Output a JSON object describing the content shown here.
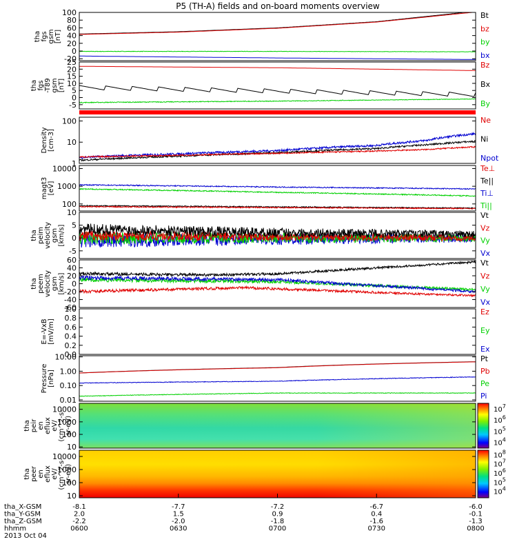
{
  "title": "P5 (TH-A) fields and on-board moments overview",
  "colors": {
    "black": "#000000",
    "red": "#e00000",
    "green": "#00d000",
    "blue": "#0000d0"
  },
  "chart_data": [
    {
      "type": "line",
      "id": "fgs",
      "ylabel": [
        "tha",
        "fgs",
        "gsm",
        "[nT]"
      ],
      "yticks": [
        "100",
        "80",
        "60",
        "40",
        "20",
        "0",
        "-20"
      ],
      "ylim": [
        -25,
        100
      ],
      "legend": [
        {
          "name": "Bt",
          "color": "black"
        },
        {
          "name": "bz",
          "color": "red"
        },
        {
          "name": "by",
          "color": "green"
        },
        {
          "name": "bx",
          "color": "blue"
        }
      ],
      "series": [
        {
          "name": "Bt",
          "color": "black",
          "x": [
            0,
            30,
            60,
            90,
            120
          ],
          "y": [
            44,
            50,
            60,
            76,
            103
          ]
        },
        {
          "name": "bz",
          "color": "red",
          "x": [
            0,
            30,
            60,
            90,
            120
          ],
          "y": [
            43,
            49,
            59,
            75,
            101
          ]
        },
        {
          "name": "by",
          "color": "green",
          "x": [
            0,
            60,
            120
          ],
          "y": [
            -1,
            -1,
            -2
          ],
          "noise": 0.6
        },
        {
          "name": "bx",
          "color": "blue",
          "x": [
            0,
            60,
            120
          ],
          "y": [
            -13,
            -18,
            -22
          ]
        }
      ]
    },
    {
      "type": "line",
      "id": "fgs_t89",
      "ylabel": [
        "tha",
        "fgs",
        "-T89",
        "gsm",
        "[nT]"
      ],
      "yticks": [
        "25",
        "20",
        "15",
        "10",
        "5",
        "0",
        "-5"
      ],
      "ylim": [
        -8,
        25
      ],
      "legend": [
        {
          "name": "Bz",
          "color": "red"
        },
        {
          "name": "Bx",
          "color": "black"
        },
        {
          "name": "By",
          "color": "green"
        }
      ],
      "series": [
        {
          "name": "Bz",
          "color": "red",
          "x": [
            0,
            60,
            120
          ],
          "y": [
            22,
            21,
            19
          ]
        },
        {
          "name": "Bx",
          "color": "black",
          "x": [
            0,
            120
          ],
          "y": [
            7,
            2
          ],
          "sawtooth": true
        },
        {
          "name": "By",
          "color": "green",
          "x": [
            0,
            60,
            120
          ],
          "y": [
            -3.5,
            -2.5,
            -1
          ],
          "noise": 0.3
        }
      ]
    },
    {
      "type": "line",
      "id": "density",
      "ylabel": [
        "Density",
        "[cm-3]"
      ],
      "yticks": [
        "100",
        "10",
        "1"
      ],
      "ylim": [
        1,
        150
      ],
      "log": true,
      "legend": [
        {
          "name": "Ne",
          "color": "red"
        },
        {
          "name": "Ni",
          "color": "black"
        },
        {
          "name": "Npot",
          "color": "blue"
        }
      ],
      "series": [
        {
          "name": "Npot",
          "color": "blue",
          "x": [
            0,
            30,
            60,
            90,
            105,
            120
          ],
          "y": [
            1.9,
            2.8,
            4.0,
            7.0,
            12.0,
            25.0
          ],
          "noise": 0.05
        },
        {
          "name": "Ni",
          "color": "black",
          "x": [
            0,
            30,
            60,
            90,
            105,
            120
          ],
          "y": [
            1.4,
            2.2,
            3.2,
            5.0,
            7.5,
            11.0
          ],
          "noise": 0.04
        },
        {
          "name": "Ne",
          "color": "red",
          "x": [
            0,
            30,
            60,
            90,
            105,
            120
          ],
          "y": [
            2.0,
            2.4,
            3.0,
            3.8,
            4.5,
            6.0
          ],
          "noise": 0.03
        }
      ]
    },
    {
      "type": "line",
      "id": "temperature",
      "ylabel": [
        "magt3",
        "[eV]"
      ],
      "yticks": [
        "10000",
        "1000",
        "100"
      ],
      "ylim": [
        40,
        15000
      ],
      "log": true,
      "legend": [
        {
          "name": "Te⊥",
          "color": "red"
        },
        {
          "name": "Te||",
          "color": "black"
        },
        {
          "name": "Ti⊥",
          "color": "blue"
        },
        {
          "name": "Ti||",
          "color": "green"
        }
      ],
      "series": [
        {
          "name": "Ti⊥",
          "color": "blue",
          "x": [
            0,
            60,
            120
          ],
          "y": [
            1200,
            900,
            700
          ],
          "noise": 0.03
        },
        {
          "name": "Ti||",
          "color": "green",
          "x": [
            0,
            60,
            120
          ],
          "y": [
            700,
            450,
            280
          ],
          "noise": 0.03
        },
        {
          "name": "Te||",
          "color": "black",
          "x": [
            0,
            60,
            120
          ],
          "y": [
            80,
            68,
            58
          ],
          "noise": 0.03
        },
        {
          "name": "Te⊥",
          "color": "red",
          "x": [
            0,
            60,
            120
          ],
          "y": [
            70,
            62,
            55
          ],
          "noise": 0.03
        }
      ]
    },
    {
      "type": "line",
      "id": "peim_velocity",
      "ylabel": [
        "tha",
        "peim",
        "velocity",
        "gsm",
        "[km/s]"
      ],
      "yticks": [
        "10",
        "5",
        "0",
        "-5"
      ],
      "ylim": [
        -8,
        10
      ],
      "legend": [
        {
          "name": "Vt",
          "color": "black"
        },
        {
          "name": "Vz",
          "color": "red"
        },
        {
          "name": "Vy",
          "color": "green"
        },
        {
          "name": "Vx",
          "color": "blue"
        }
      ],
      "series": [
        {
          "name": "Vx",
          "color": "blue",
          "x": [
            0,
            60,
            120
          ],
          "y": [
            -1,
            -0.5,
            0
          ],
          "noise": 2.8
        },
        {
          "name": "Vy",
          "color": "green",
          "x": [
            0,
            60,
            120
          ],
          "y": [
            0,
            0,
            0
          ],
          "noise": 2.5
        },
        {
          "name": "Vz",
          "color": "red",
          "x": [
            0,
            60,
            120
          ],
          "y": [
            1,
            0.5,
            0
          ],
          "noise": 2.0
        },
        {
          "name": "Vt",
          "color": "black",
          "x": [
            0,
            60,
            120
          ],
          "y": [
            3.5,
            2.2,
            1.5
          ],
          "noise": 2.2
        }
      ]
    },
    {
      "type": "line",
      "id": "peem_velocity",
      "ylabel": [
        "tha",
        "peem",
        "velocity",
        "gsm",
        "[km/s]"
      ],
      "yticks": [
        "60",
        "40",
        "20",
        "0",
        "-20",
        "-40",
        "-60"
      ],
      "ylim": [
        -60,
        60
      ],
      "legend": [
        {
          "name": "Vt",
          "color": "black"
        },
        {
          "name": "Vz",
          "color": "red"
        },
        {
          "name": "Vy",
          "color": "green"
        },
        {
          "name": "Vx",
          "color": "blue"
        }
      ],
      "series": [
        {
          "name": "Vt",
          "color": "black",
          "x": [
            0,
            40,
            60,
            80,
            100,
            120
          ],
          "y": [
            25,
            22,
            25,
            35,
            45,
            55
          ],
          "noise": 4
        },
        {
          "name": "Vy",
          "color": "green",
          "x": [
            0,
            60,
            120
          ],
          "y": [
            10,
            5,
            -15
          ],
          "noise": 5
        },
        {
          "name": "Vx",
          "color": "blue",
          "x": [
            0,
            60,
            120
          ],
          "y": [
            15,
            10,
            -20
          ],
          "noise": 5
        },
        {
          "name": "Vz",
          "color": "red",
          "x": [
            0,
            50,
            100,
            120
          ],
          "y": [
            -20,
            -10,
            -25,
            -30
          ],
          "noise": 4
        }
      ]
    },
    {
      "type": "line",
      "id": "efield",
      "ylabel": [
        "E=-VxB",
        "[mV/m]"
      ],
      "yticks": [
        "1.0",
        "0.8",
        "0.6",
        "0.4",
        "0.2",
        "0.0"
      ],
      "ylim": [
        0,
        1
      ],
      "legend": [
        {
          "name": "Ez",
          "color": "red"
        },
        {
          "name": "Ey",
          "color": "green"
        },
        {
          "name": "Ex",
          "color": "blue"
        }
      ],
      "series": []
    },
    {
      "type": "line",
      "id": "pressure",
      "ylabel": [
        "Pressure",
        "[nPa]"
      ],
      "yticks": [
        "10.00",
        "1.00",
        "0.10",
        "0.01"
      ],
      "ylim": [
        0.008,
        12
      ],
      "log": true,
      "legend": [
        {
          "name": "Pt",
          "color": "black"
        },
        {
          "name": "Pb",
          "color": "red"
        },
        {
          "name": "Pe",
          "color": "green"
        },
        {
          "name": "Pi",
          "color": "blue"
        }
      ],
      "series": [
        {
          "name": "Pt",
          "color": "black",
          "x": [
            0,
            60,
            120
          ],
          "y": [
            0.75,
            1.8,
            4.6
          ]
        },
        {
          "name": "Pb",
          "color": "red",
          "x": [
            0,
            60,
            120
          ],
          "y": [
            0.74,
            1.75,
            4.5
          ]
        },
        {
          "name": "Pi",
          "color": "blue",
          "x": [
            0,
            60,
            120
          ],
          "y": [
            0.15,
            0.2,
            0.4
          ],
          "noise": 0.02
        },
        {
          "name": "Pe",
          "color": "green",
          "x": [
            0,
            60,
            120
          ],
          "y": [
            0.018,
            0.03,
            0.03
          ],
          "noise": 0.02
        }
      ]
    },
    {
      "type": "heatmap",
      "id": "peir_spec",
      "ylabel": [
        "tha",
        "peir",
        "en",
        "eflux",
        "eV/",
        "(cm^2-s-",
        "sr-eV)"
      ],
      "yticks": [
        "10000",
        "1000",
        "100",
        "10"
      ],
      "ylim": [
        8,
        30000
      ],
      "log": true,
      "colorbar_ticks": [
        "10^7",
        "10^6",
        "10^5",
        "10^4"
      ],
      "colorbar_range": [
        3000,
        30000000
      ]
    },
    {
      "type": "heatmap",
      "id": "peer_spec",
      "ylabel": [
        "tha",
        "peer",
        "en",
        "eflux",
        "eV/",
        "(cm^2-s-",
        "sr-eV)"
      ],
      "yticks": [
        "10000",
        "1000",
        "100",
        "10"
      ],
      "ylim": [
        7,
        30000
      ],
      "log": true,
      "colorbar_ticks": [
        "10^8",
        "10^7",
        "10^6",
        "10^5",
        "10^4"
      ],
      "colorbar_range": [
        2000,
        300000000
      ]
    }
  ],
  "xaxis": {
    "time_labels": [
      "0600",
      "0630",
      "0700",
      "0730",
      "0800"
    ],
    "rows": [
      {
        "label": "tha_X-GSM",
        "values": [
          "-8.1",
          "-7.7",
          "-7.2",
          "-6.7",
          "-6.0"
        ]
      },
      {
        "label": "tha_Y-GSM",
        "values": [
          "2.0",
          "1.5",
          "0.9",
          "0.4",
          "-0.1"
        ]
      },
      {
        "label": "tha_Z-GSM",
        "values": [
          "-2.2",
          "-2.0",
          "-1.8",
          "-1.6",
          "-1.3"
        ]
      },
      {
        "label": "hhmm",
        "values": [
          "0600",
          "0630",
          "0700",
          "0730",
          "0800"
        ]
      }
    ],
    "date": "2013 Oct 04"
  }
}
